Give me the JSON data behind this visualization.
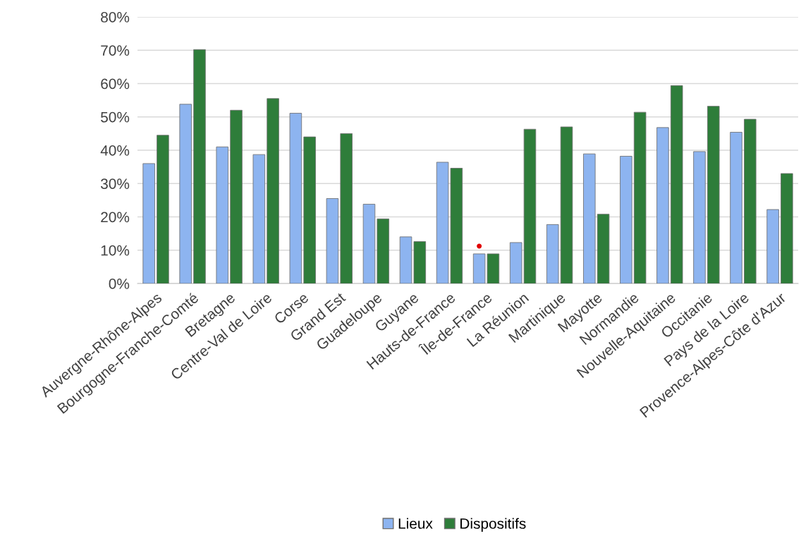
{
  "chart_data": {
    "type": "bar",
    "categories": [
      "Auvergne-Rhône-Alpes",
      "Bourgogne-Franche-Comté",
      "Bretagne",
      "Centre-Val de Loire",
      "Corse",
      "Grand Est",
      "Guadeloupe",
      "Guyane",
      "Hauts-de-France",
      "Île-de-France",
      "La Réunion",
      "Martinique",
      "Mayotte",
      "Normandie",
      "Nouvelle-Aquitaine",
      "Occitanie",
      "Pays de la Loire",
      "Provence-Alpes-Côte d'Azur"
    ],
    "series": [
      {
        "name": "Lieux",
        "color": "#8db4f0",
        "values": [
          36.0,
          53.8,
          41.0,
          38.7,
          51.1,
          25.5,
          23.8,
          14.0,
          36.4,
          8.9,
          12.3,
          17.7,
          38.9,
          38.2,
          46.8,
          39.6,
          45.4,
          22.2
        ]
      },
      {
        "name": "Dispositifs",
        "color": "#2e7d3a",
        "values": [
          44.5,
          70.2,
          52.0,
          55.5,
          44.0,
          45.0,
          19.4,
          12.6,
          34.6,
          8.9,
          46.3,
          47.0,
          20.8,
          51.4,
          59.4,
          53.2,
          49.3,
          33.0
        ]
      }
    ],
    "ylim": [
      0,
      80
    ],
    "yticks": [
      {
        "value": 0,
        "label": "0%"
      },
      {
        "value": 10,
        "label": "10%"
      },
      {
        "value": 20,
        "label": "20%"
      },
      {
        "value": 30,
        "label": "30%"
      },
      {
        "value": 40,
        "label": "40%"
      },
      {
        "value": 50,
        "label": "50%"
      },
      {
        "value": 60,
        "label": "60%"
      },
      {
        "value": 70,
        "label": "70%"
      },
      {
        "value": 80,
        "label": "80%"
      }
    ],
    "grid": "y",
    "legend": "bottom"
  }
}
